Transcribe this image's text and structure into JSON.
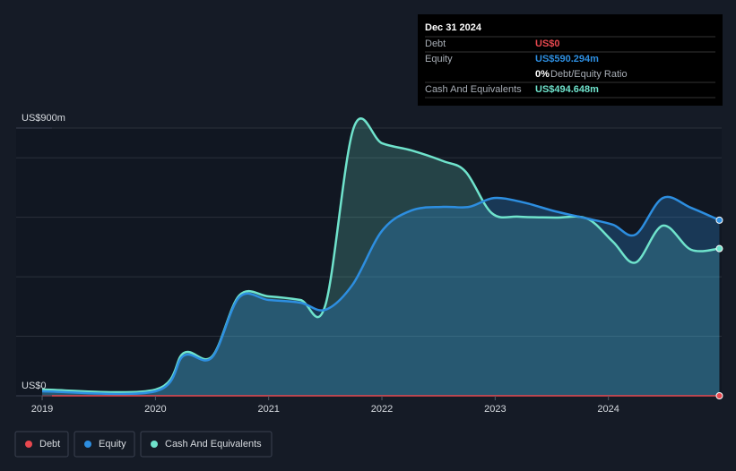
{
  "chart_data": {
    "type": "area",
    "tooltip": {
      "title": "Dec 31 2024",
      "rows": [
        {
          "label": "Debt",
          "value": "US$0"
        },
        {
          "label": "Equity",
          "value": "US$590.294m"
        },
        {
          "value": "0%",
          "note": "Debt/Equity Ratio"
        },
        {
          "label": "Cash And Equivalents",
          "value": "US$494.648m"
        }
      ]
    },
    "xlim": [
      2018.77,
      2025.0
    ],
    "xticks": [
      2019,
      2020,
      2021,
      2022,
      2023,
      2024
    ],
    "ylim": [
      0,
      900
    ],
    "yticks": [
      {
        "value": 0,
        "label": "US$0"
      },
      {
        "value": 900,
        "label": "US$900m"
      }
    ],
    "grid_values": [
      200,
      400,
      600,
      800,
      900
    ],
    "grid": true,
    "legend": "bottom-left",
    "series": [
      {
        "name": "Debt",
        "color": "#e8484f",
        "x": [
          2019.0,
          2020.0,
          2021.0,
          2022.0,
          2023.0,
          2024.0,
          2024.98
        ],
        "values": [
          0,
          0,
          0,
          0,
          0,
          0,
          0
        ]
      },
      {
        "name": "Equity",
        "color": "#2d8ee0",
        "x": [
          2019.0,
          2020.0,
          2020.25,
          2020.5,
          2020.74,
          2021.0,
          2021.28,
          2021.5,
          2021.74,
          2022.0,
          2022.26,
          2022.54,
          2022.77,
          2022.99,
          2023.25,
          2023.53,
          2023.81,
          2024.04,
          2024.24,
          2024.48,
          2024.73,
          2024.98
        ],
        "values": [
          15,
          15,
          135,
          129,
          331,
          322,
          313,
          289,
          373,
          554,
          623,
          635,
          635,
          665,
          650,
          620,
          596,
          575,
          542,
          665,
          632,
          590.294
        ]
      },
      {
        "name": "Cash And Equivalents",
        "color": "#6fe3cc",
        "x": [
          2019.0,
          2020.0,
          2020.25,
          2020.5,
          2020.74,
          2021.0,
          2021.28,
          2021.5,
          2021.75,
          2022.0,
          2022.26,
          2022.54,
          2022.74,
          2022.97,
          2023.21,
          2023.53,
          2023.81,
          2024.04,
          2024.24,
          2024.48,
          2024.73,
          2024.98
        ],
        "values": [
          21,
          21,
          144,
          132,
          337,
          334,
          322,
          304,
          900,
          849,
          825,
          789,
          753,
          614,
          602,
          599,
          596,
          518,
          448,
          572,
          491,
          494.648
        ]
      }
    ]
  }
}
